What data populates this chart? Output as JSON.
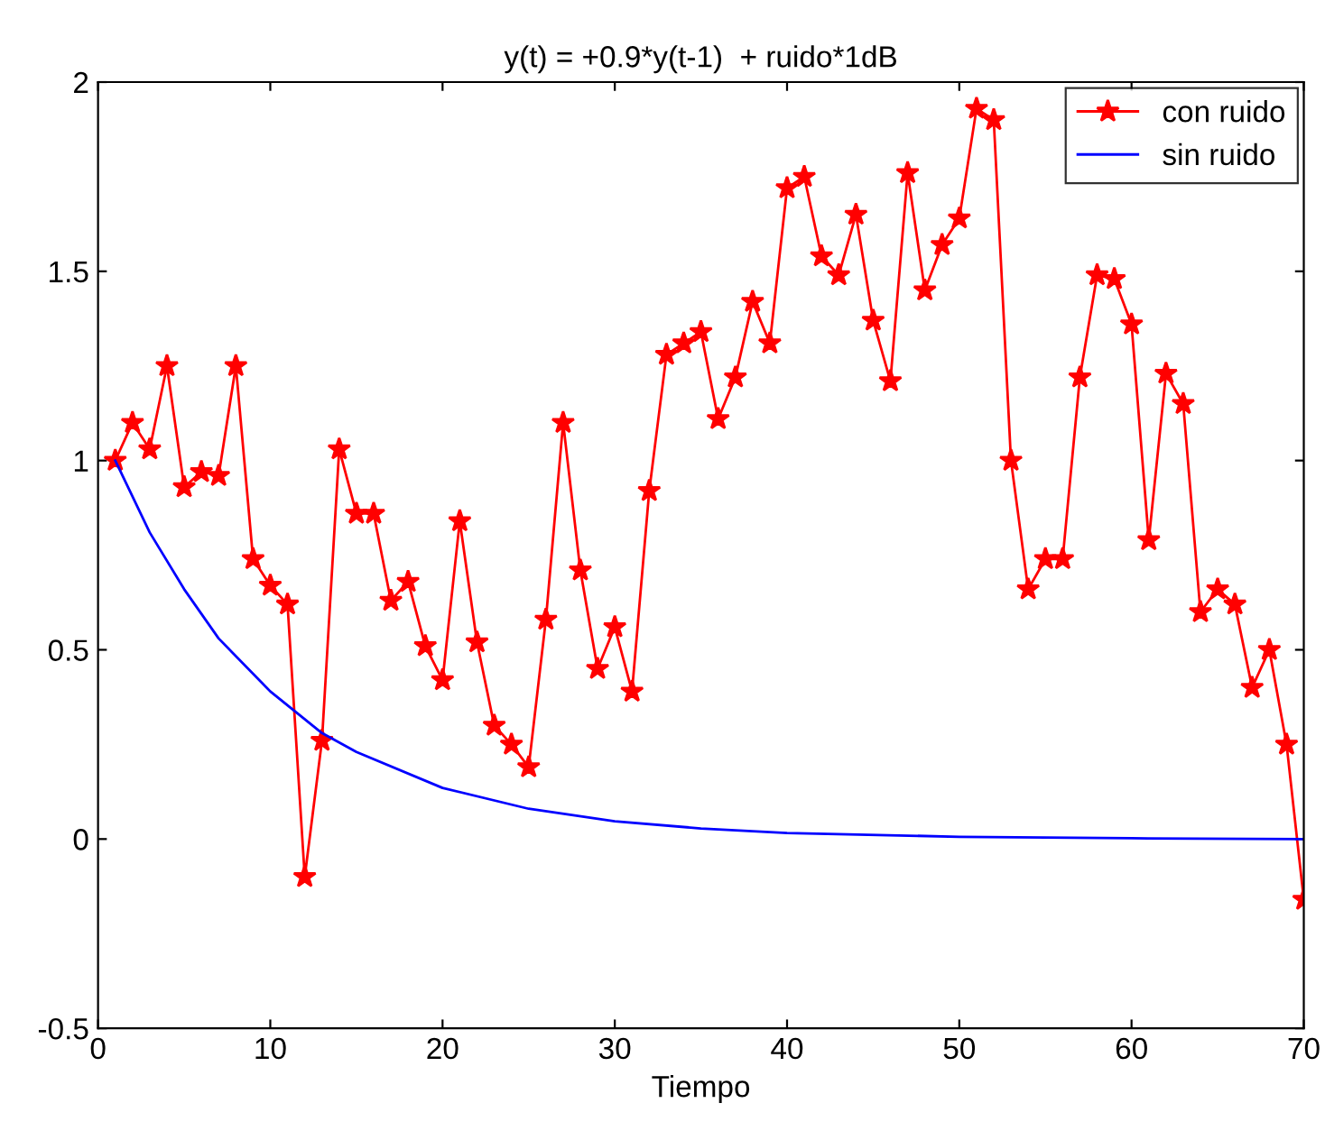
{
  "chart_data": {
    "type": "line",
    "title": "y(t) = +0.9*y(t-1)  + ruido*1dB",
    "xlabel": "Tiempo",
    "xlim": [
      0,
      70
    ],
    "xticks": [
      0,
      10,
      20,
      30,
      40,
      50,
      60,
      70
    ],
    "ylim": [
      -0.5,
      2
    ],
    "yticks": [
      -0.5,
      0,
      0.5,
      1,
      1.5,
      2
    ],
    "grid": false,
    "legend": "top right",
    "series": [
      {
        "name": "con ruido",
        "color": "#ff0000",
        "marker": "star",
        "line_style": "solid",
        "x": [
          1,
          2,
          3,
          4,
          5,
          6,
          7,
          8,
          9,
          10,
          11,
          12,
          13,
          14,
          15,
          16,
          17,
          18,
          19,
          20,
          21,
          22,
          23,
          24,
          25,
          26,
          27,
          28,
          29,
          30,
          31,
          32,
          33,
          34,
          35,
          36,
          37,
          38,
          39,
          40,
          41,
          42,
          43,
          44,
          45,
          46,
          47,
          48,
          49,
          50,
          51,
          52,
          53,
          54,
          55,
          56,
          57,
          58,
          59,
          60,
          61,
          62,
          63,
          64,
          65,
          66,
          67,
          68,
          69,
          70
        ],
        "values": [
          1.0,
          1.1,
          1.03,
          1.25,
          0.93,
          0.97,
          0.96,
          1.25,
          0.74,
          0.67,
          0.62,
          -0.1,
          0.26,
          1.03,
          0.86,
          0.86,
          0.63,
          0.68,
          0.51,
          0.42,
          0.84,
          0.52,
          0.3,
          0.25,
          0.19,
          0.58,
          1.1,
          0.71,
          0.45,
          0.56,
          0.39,
          0.92,
          1.28,
          1.31,
          1.34,
          1.11,
          1.22,
          1.42,
          1.31,
          1.72,
          1.75,
          1.54,
          1.49,
          1.65,
          1.37,
          1.21,
          1.76,
          1.45,
          1.57,
          1.64,
          1.93,
          1.9,
          1.0,
          0.66,
          0.74,
          0.74,
          1.22,
          1.49,
          1.48,
          1.36,
          0.79,
          1.23,
          1.15,
          0.6,
          0.66,
          0.62,
          0.4,
          0.5,
          0.25,
          -0.16
        ]
      },
      {
        "name": "sin ruido",
        "color": "#0000ff",
        "marker": "none",
        "line_style": "solid",
        "x": [
          1,
          3,
          5,
          7,
          10,
          13,
          15,
          20,
          25,
          30,
          35,
          40,
          50,
          60,
          70
        ],
        "values": [
          1.0,
          0.81,
          0.66,
          0.53,
          0.39,
          0.28,
          0.23,
          0.135,
          0.08,
          0.047,
          0.028,
          0.016,
          0.006,
          0.002,
          0.0
        ]
      }
    ]
  }
}
